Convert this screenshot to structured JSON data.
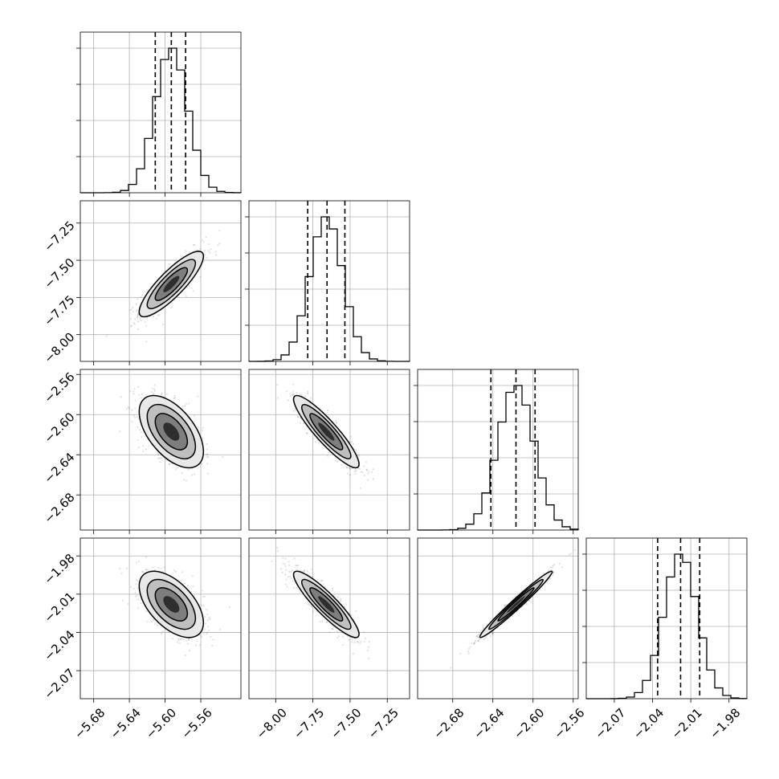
{
  "chart_data": {
    "type": "corner",
    "grid": true,
    "parameters": [
      {
        "range": [
          -5.695,
          -5.515
        ],
        "ticks": [
          "−5.68",
          "−5.64",
          "−5.60",
          "−5.56"
        ],
        "tick_values": [
          -5.68,
          -5.64,
          -5.6,
          -5.56
        ],
        "mean": -5.593,
        "sd": 0.018,
        "quantiles": [
          -5.611,
          -5.593,
          -5.577
        ]
      },
      {
        "range": [
          -8.18,
          -7.1
        ],
        "ticks": [
          "−8.00",
          "−7.75",
          "−7.50",
          "−7.25"
        ],
        "tick_values": [
          -8.0,
          -7.75,
          -7.5,
          -7.25
        ],
        "mean": -7.66,
        "sd": 0.11,
        "quantiles": [
          -7.785,
          -7.655,
          -7.535
        ]
      },
      {
        "range": [
          -2.715,
          -2.555
        ],
        "ticks": [
          "−2.68",
          "−2.64",
          "−2.60",
          "−2.56"
        ],
        "tick_values": [
          -2.68,
          -2.64,
          -2.6,
          -2.56
        ],
        "mean": -2.617,
        "sd": 0.018,
        "quantiles": [
          -2.642,
          -2.617,
          -2.598
        ]
      },
      {
        "range": [
          -2.092,
          -1.966
        ],
        "ticks": [
          "−2.07",
          "−2.04",
          "−2.01",
          "−1.98"
        ],
        "tick_values": [
          -2.07,
          -2.04,
          -2.01,
          -1.98
        ],
        "mean": -2.018,
        "sd": 0.013,
        "quantiles": [
          -2.036,
          -2.018,
          -2.003
        ]
      }
    ],
    "correlations": [
      [
        1.0,
        0.85,
        -0.55,
        -0.55
      ],
      [
        0.85,
        1.0,
        -0.9,
        -0.9
      ],
      [
        -0.55,
        -0.9,
        1.0,
        0.98
      ],
      [
        -0.55,
        -0.9,
        0.98,
        1.0
      ]
    ],
    "contour_levels_sigma": [
      0.5,
      1.0,
      1.5,
      2.0
    ]
  }
}
